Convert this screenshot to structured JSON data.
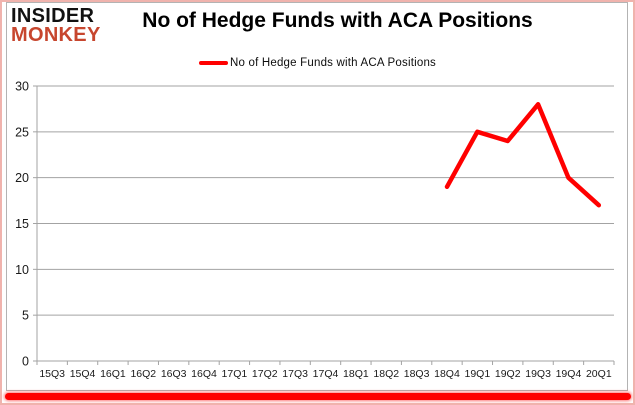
{
  "logo": {
    "line1": "INSIDER",
    "line2": "MONKEY",
    "color1": "#111111",
    "color2": "#c7462e"
  },
  "legend": {
    "label": "No of Hedge Funds with ACA Positions",
    "color": "#ff0000"
  },
  "window": {
    "border_color": "#f0b3ad",
    "bottom_bar_color": "#fe0000",
    "background": "#ffffff"
  },
  "chart_data": {
    "type": "line",
    "title": "No of Hedge Funds with ACA Positions",
    "categories": [
      "15Q3",
      "15Q4",
      "16Q1",
      "16Q2",
      "16Q3",
      "16Q4",
      "17Q1",
      "17Q2",
      "17Q3",
      "17Q4",
      "18Q1",
      "18Q2",
      "18Q3",
      "18Q4",
      "19Q1",
      "19Q2",
      "19Q3",
      "19Q4",
      "20Q1"
    ],
    "series": [
      {
        "name": "No of Hedge Funds with ACA Positions",
        "color": "#ff0000",
        "values": [
          null,
          null,
          null,
          null,
          null,
          null,
          null,
          null,
          null,
          null,
          null,
          null,
          null,
          19,
          25,
          24,
          28,
          20,
          17
        ]
      }
    ],
    "xlabel": "",
    "ylabel": "",
    "ylim": [
      0,
      30
    ],
    "yticks": [
      0,
      5,
      10,
      15,
      20,
      25,
      30
    ],
    "grid": "horizontal",
    "legend_position": "top-center",
    "colors": {
      "grid": "#a3a3a3",
      "axis": "#a3a3a3",
      "tick_label": "#1a1a1a"
    }
  }
}
